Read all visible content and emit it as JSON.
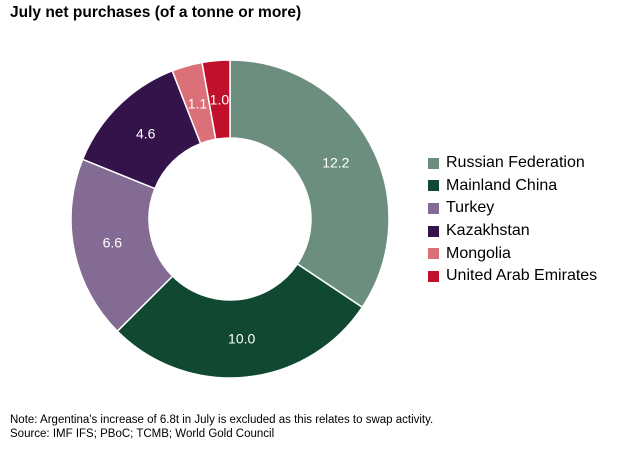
{
  "chart_data": {
    "type": "pie",
    "variant": "donut",
    "title": "July net purchases (of a tonne or more)",
    "unit": "tonnes",
    "categories": [
      "Russian Federation",
      "Mainland China",
      "Turkey",
      "Kazakhstan",
      "Mongolia",
      "United Arab Emirates"
    ],
    "values": [
      12.2,
      10.0,
      6.6,
      4.6,
      1.1,
      1.0
    ],
    "value_labels": [
      "12.2",
      "10.0",
      "6.6",
      "4.6",
      "1.1",
      "1.0"
    ],
    "colors": [
      "#6b8e7f",
      "#114832",
      "#836b94",
      "#34124a",
      "#dc7078",
      "#c0102c"
    ],
    "legend_position": "right",
    "start_angle": "12 o'clock",
    "direction": "clockwise"
  },
  "notes": {
    "note": "Note: Argentina's increase of 6.8t in July is excluded as this relates to swap activity.",
    "source": "Source: IMF IFS; PBoC; TCMB; World Gold Council"
  }
}
